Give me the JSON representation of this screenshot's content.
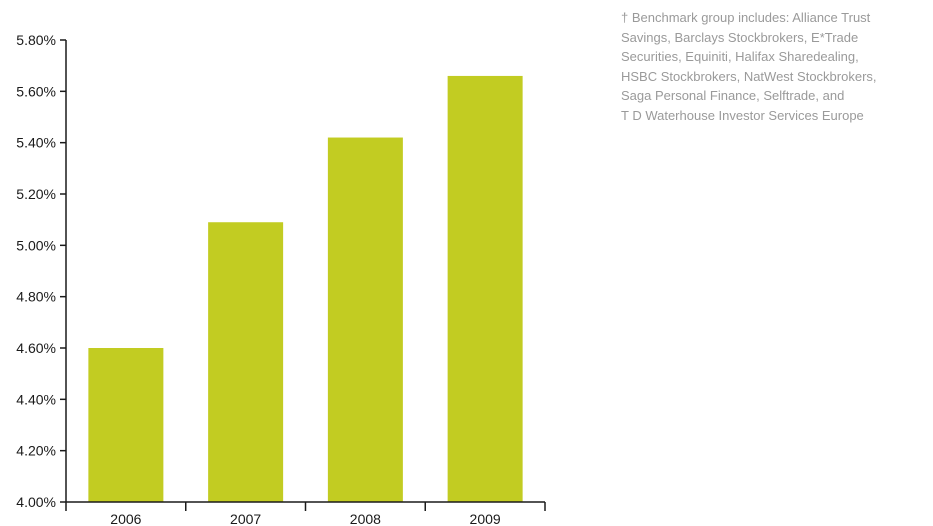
{
  "chart_data": {
    "type": "bar",
    "categories": [
      "2006",
      "2007",
      "2008",
      "2009"
    ],
    "values": [
      4.6,
      5.09,
      5.42,
      5.66
    ],
    "ylim": [
      4.0,
      5.8
    ],
    "yticks": [
      "4.00%",
      "4.20%",
      "4.40%",
      "4.60%",
      "4.80%",
      "5.00%",
      "5.20%",
      "5.40%",
      "5.60%",
      "5.80%"
    ],
    "ytick_values": [
      4.0,
      4.2,
      4.4,
      4.6,
      4.8,
      5.0,
      5.2,
      5.4,
      5.6,
      5.8
    ],
    "title": "",
    "xlabel": "",
    "ylabel": "",
    "grid": false,
    "bar_color": "#c2cc22",
    "axis_color": "#1a1a1a"
  },
  "footnote": {
    "lines": [
      "† Benchmark group includes:  Alliance Trust",
      "Savings, Barclays Stockbrokers, E*Trade",
      "Securities, Equiniti, Halifax Sharedealing,",
      "HSBC Stockbrokers, NatWest Stockbrokers,",
      "Saga Personal Finance, Selftrade, and",
      "T D Waterhouse Investor Services Europe"
    ],
    "color": "#9a9a9a"
  }
}
